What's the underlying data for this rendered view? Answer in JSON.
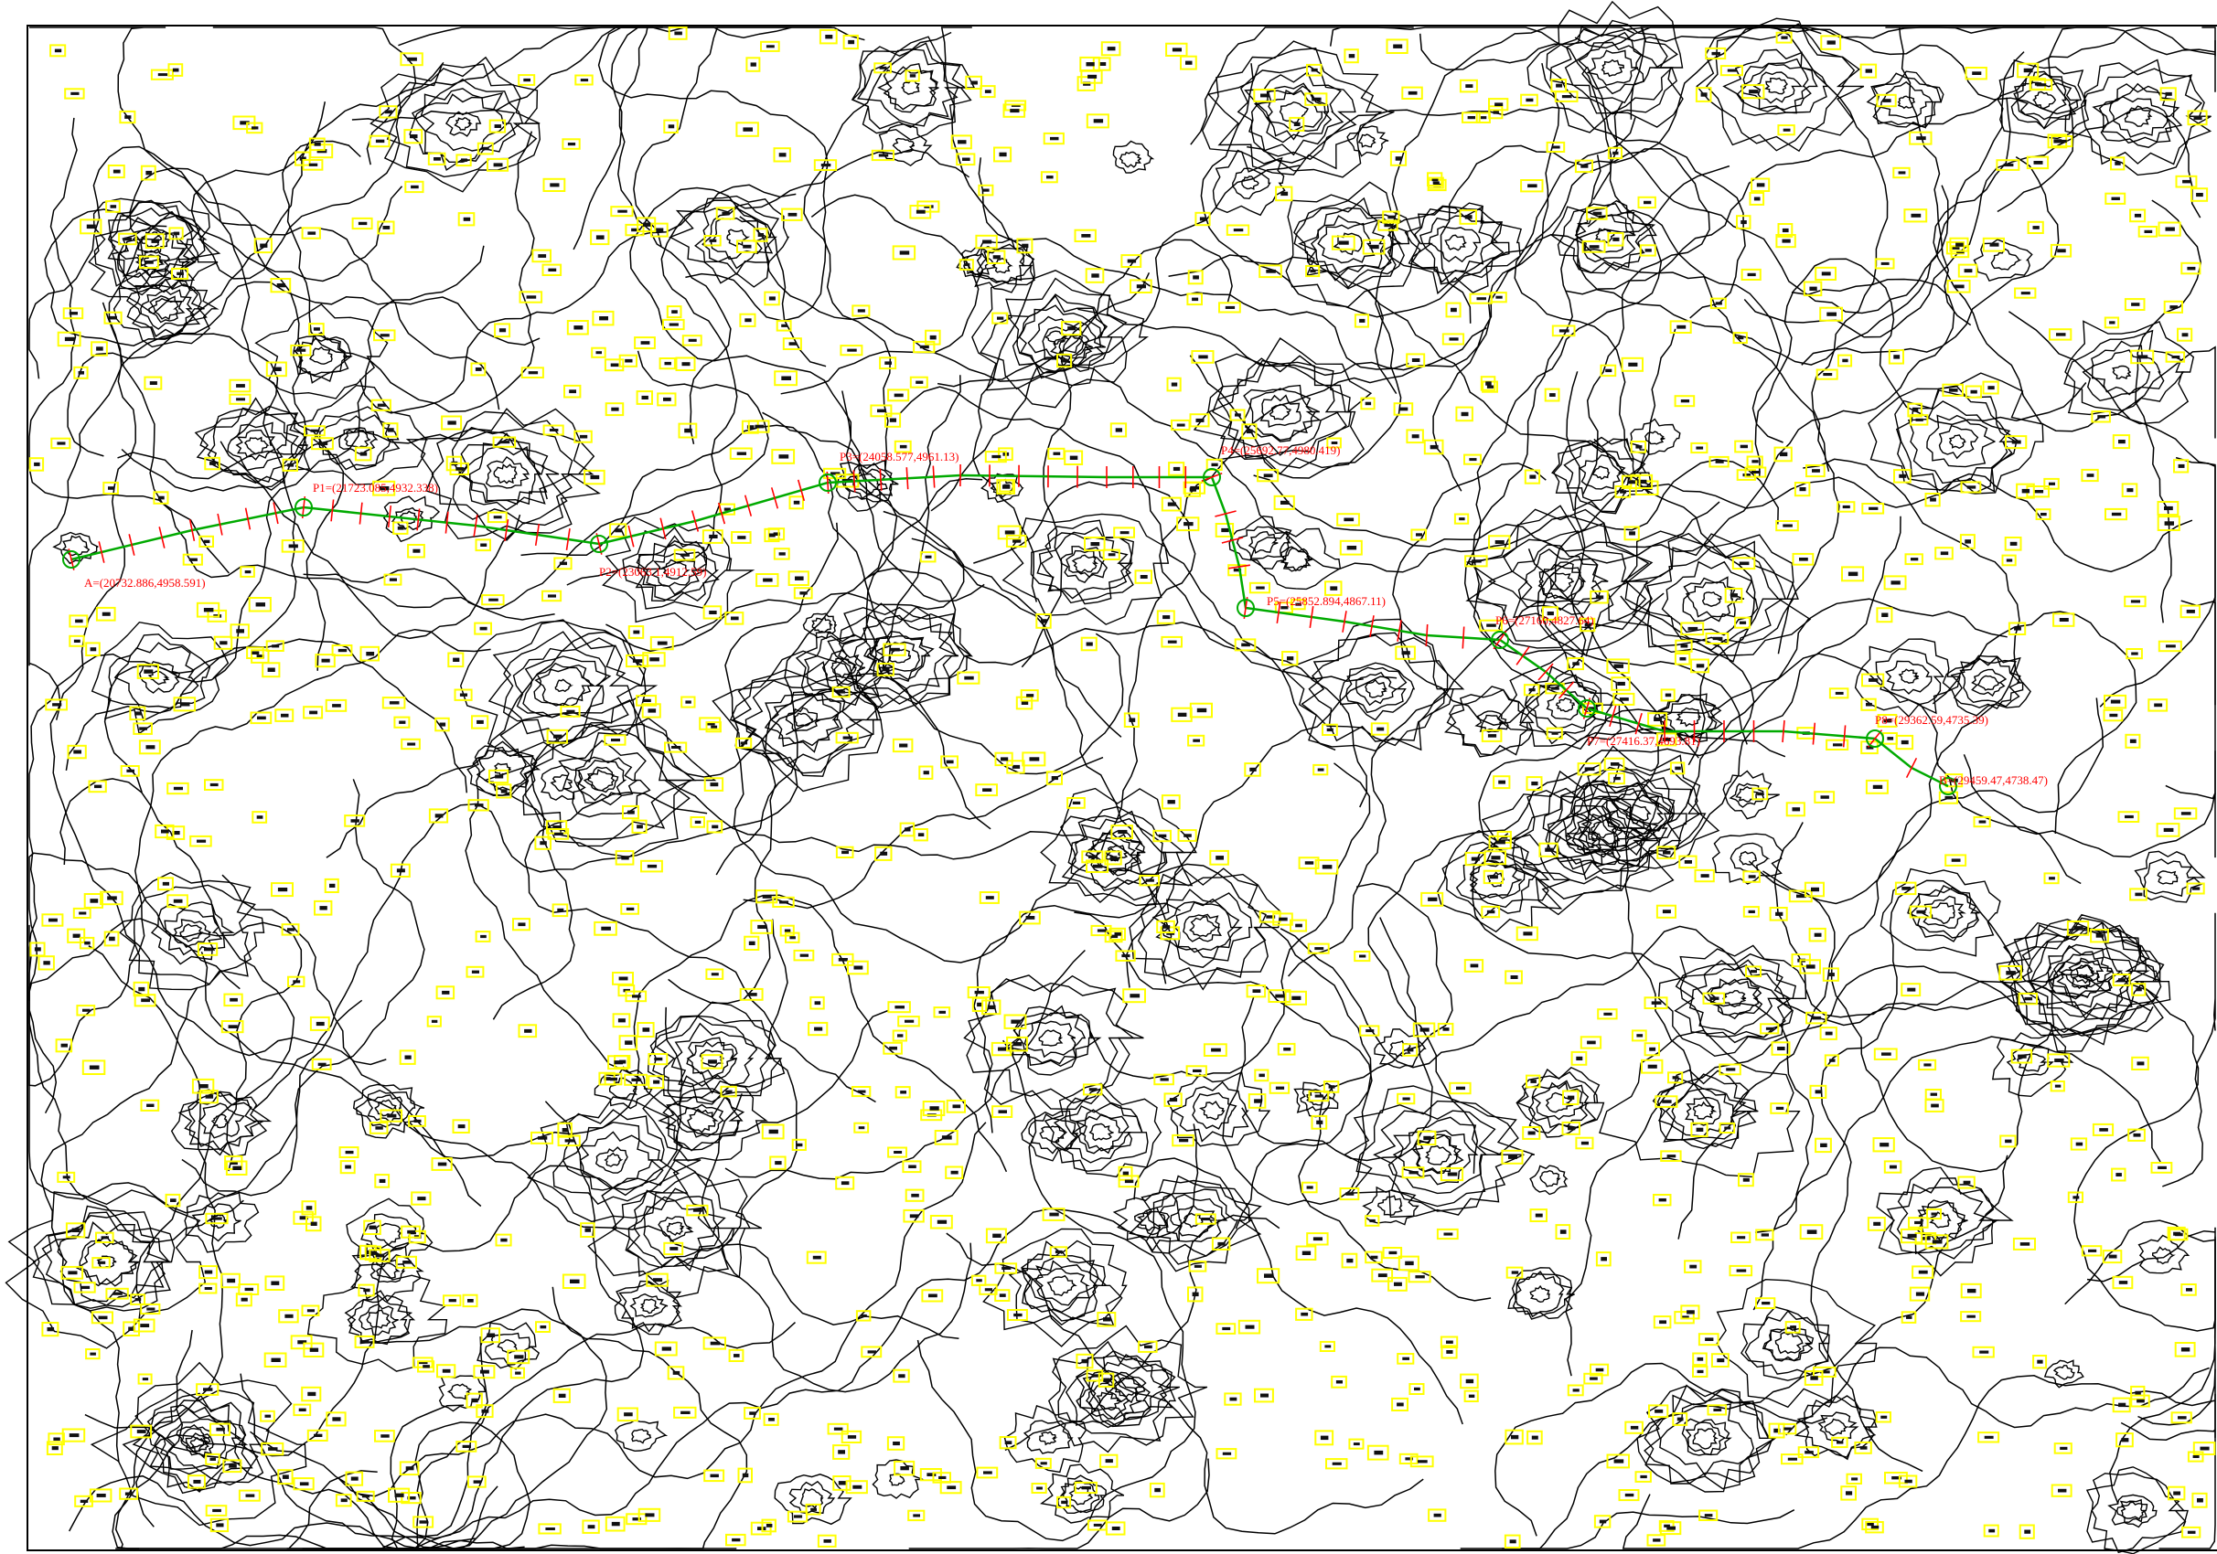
{
  "map": {
    "background": "#ffffff",
    "colors": {
      "contour": "#000000",
      "elevation_box": "#ffff00",
      "route": "#00aa00",
      "stations": "#ff0000",
      "labels": "#ff0000"
    },
    "route_points": [
      {
        "id": "A",
        "label": "A=(20732.886,4958.591)"
      },
      {
        "id": "P1",
        "label": "P1=(21723.085,4932.338)"
      },
      {
        "id": "P2",
        "label": "P2=(23063.1,4912.59)"
      },
      {
        "id": "P3",
        "label": "P3=(24058.577,4961.13)"
      },
      {
        "id": "P4",
        "label": "P4=(25692.77,4980.419)"
      },
      {
        "id": "P5",
        "label": "P5=(25852.894,4867.11)"
      },
      {
        "id": "P6",
        "label": "P6=(27160,4827.64)"
      },
      {
        "id": "P7",
        "label": "P7=(27416.37,4693.81)"
      },
      {
        "id": "P8",
        "label": "P8=(29362.59,4735.39)"
      },
      {
        "id": "B",
        "label": "B=(29459.47,4738.47)"
      }
    ]
  }
}
